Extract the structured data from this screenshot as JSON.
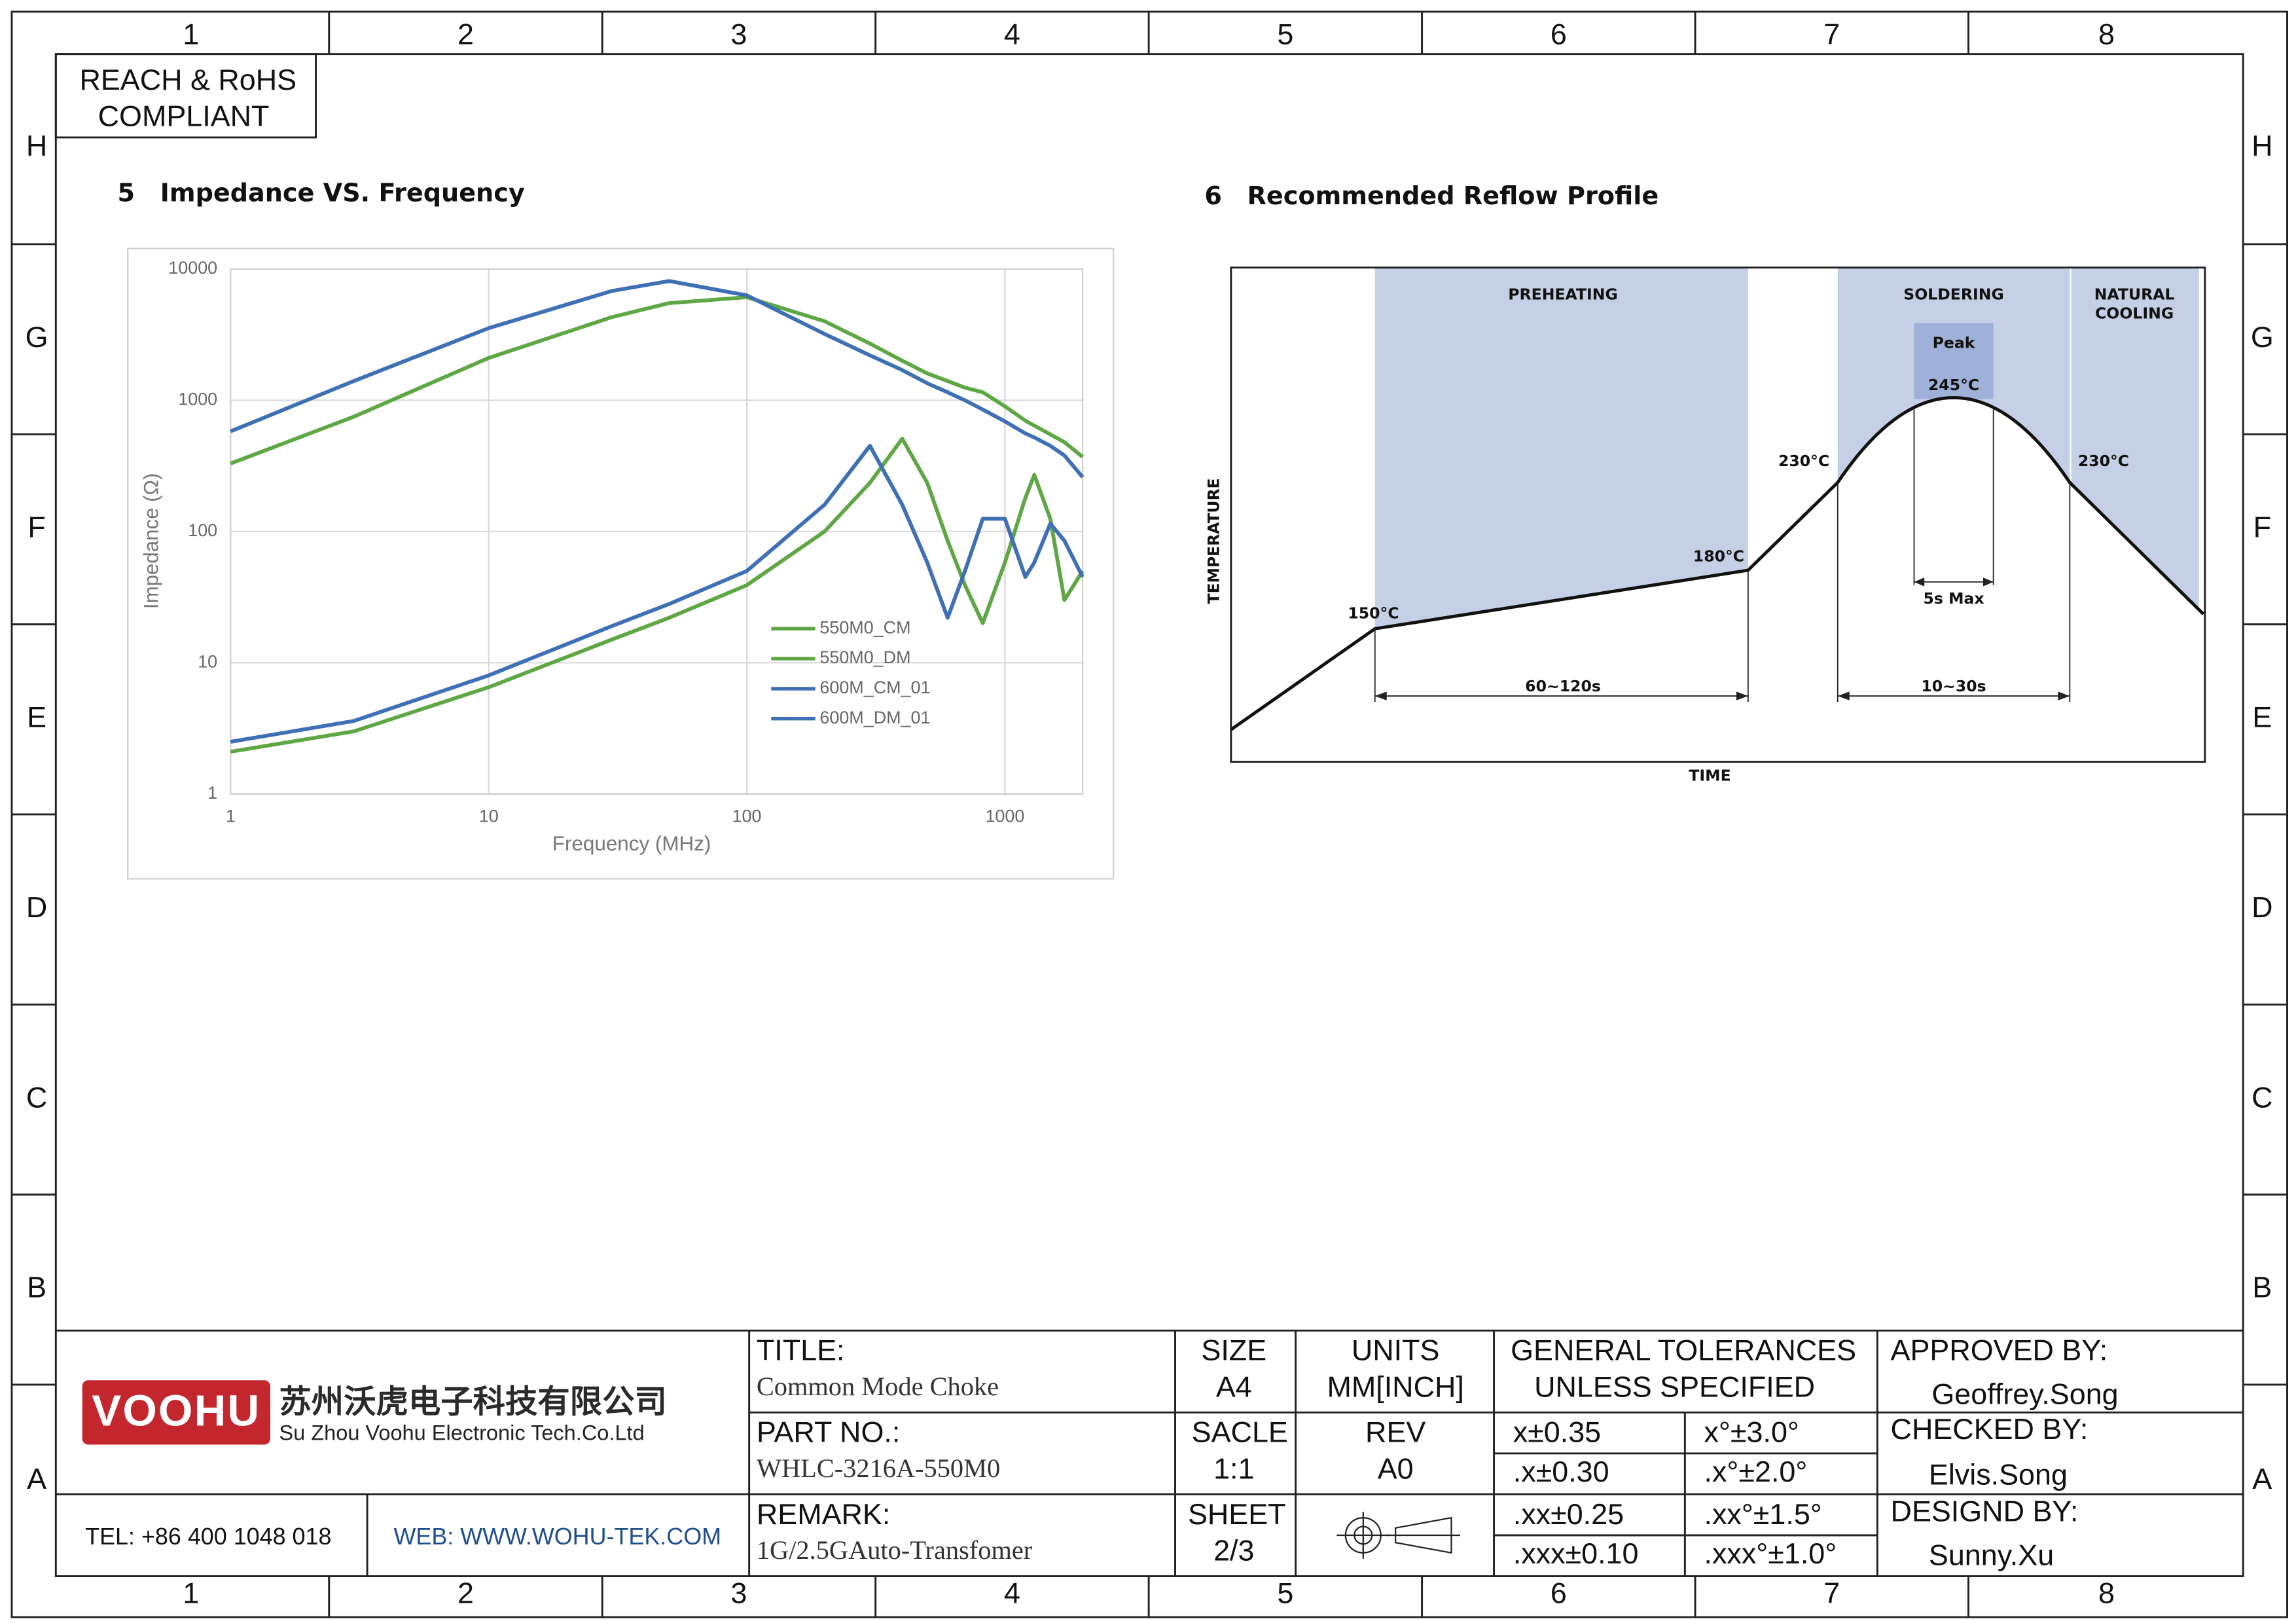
{
  "border": {
    "columns": [
      "1",
      "2",
      "3",
      "4",
      "5",
      "6",
      "7",
      "8"
    ],
    "rows": [
      "H",
      "G",
      "F",
      "E",
      "D",
      "C",
      "B",
      "A"
    ]
  },
  "compliance": [
    "REACH & RoHS",
    "COMPLIANT"
  ],
  "sections": [
    {
      "number": "5",
      "title": "Impedance VS. Frequency"
    },
    {
      "number": "6",
      "title": "Recommended Reflow Profile"
    }
  ],
  "chart_data": {
    "type": "line",
    "xlabel": "Frequency (MHz)",
    "ylabel": "Impedance (Ω)",
    "xscale": "log",
    "yscale": "log",
    "x": [
      1,
      3,
      10,
      30,
      50,
      100,
      200,
      300,
      400,
      500,
      600,
      700,
      820,
      1000,
      1200,
      1300,
      1500,
      1700,
      2000
    ],
    "xlim": [
      1,
      2000
    ],
    "xticks": [
      1,
      10,
      100,
      1000
    ],
    "ylim": [
      1,
      10000
    ],
    "yticks": [
      1,
      10,
      100,
      1000,
      10000
    ],
    "grid": true,
    "legend": "lower center",
    "series": [
      {
        "name": "550M0_CM",
        "color": "#5fa745",
        "values": [
          330,
          750,
          2100,
          4300,
          5500,
          6100,
          4000,
          2700,
          2000,
          1600,
          1400,
          1250,
          1150,
          900,
          700,
          640,
          550,
          480,
          370
        ]
      },
      {
        "name": "550M0_DM",
        "color": "#5fa745",
        "values": [
          2.1,
          3,
          6.5,
          15,
          22,
          39,
          100,
          235,
          510,
          235,
          85,
          39,
          20,
          58,
          180,
          270,
          125,
          30,
          50
        ]
      },
      {
        "name": "600M_CM_01",
        "color": "#3f6fb5",
        "values": [
          580,
          1400,
          3550,
          6800,
          8100,
          6300,
          3200,
          2200,
          1700,
          1350,
          1150,
          1000,
          850,
          690,
          560,
          520,
          450,
          380,
          260
        ]
      },
      {
        "name": "600M_DM_01",
        "color": "#3f6fb5",
        "values": [
          2.5,
          3.6,
          8,
          19,
          28,
          50,
          160,
          450,
          160,
          58,
          22,
          50,
          125,
          125,
          45,
          58,
          115,
          85,
          45
        ]
      }
    ]
  },
  "reflow": {
    "zones": [
      "PREHEATING",
      "SOLDERING",
      "NATURAL",
      "COOLING"
    ],
    "peak": "Peak",
    "peak_temp": "245°C",
    "temps": [
      "150°C",
      "180°C",
      "230°C",
      "230°C"
    ],
    "durations": [
      "60~120s",
      "10~30s",
      "5s Max"
    ],
    "ylabel": "TEMPERATURE",
    "xlabel": "TIME"
  },
  "title_block": {
    "logo": "VOOHU",
    "company_cn": "苏州沃虎电子科技有限公司",
    "company_en": "Su Zhou Voohu Electronic Tech.Co.Ltd",
    "tel": "TEL: +86 400 1048 018",
    "web": "WEB: WWW.WOHU-TEK.COM",
    "title_label": "TITLE:",
    "title": "Common Mode Choke",
    "part_label": "PART NO.:",
    "part": "WHLC-3216A-550M0",
    "remark_label": "REMARK:",
    "remark": "1G/2.5GAuto-Transfomer",
    "size_label": "SIZE",
    "size": "A4",
    "units_label": "UNITS",
    "units": "MM[INCH]",
    "scale_label": "SACLE",
    "scale": "1:1",
    "rev_label": "REV",
    "rev": "A0",
    "sheet_label": "SHEET",
    "sheet": "2/3",
    "tolerances_label": [
      "GENERAL TOLERANCES",
      "UNLESS SPECIFIED"
    ],
    "tolerances": [
      [
        "x±0.35",
        "x°±3.0°"
      ],
      [
        ".x±0.30",
        ".x°±2.0°"
      ],
      [
        ".xx±0.25",
        ".xx°±1.5°"
      ],
      [
        ".xxx±0.10",
        ".xxx°±1.0°"
      ]
    ],
    "approved_label": "APPROVED BY:",
    "approved": "Geoffrey.Song",
    "checked_label": "CHECKED BY:",
    "checked": "Elvis.Song",
    "designed_label": "DESIGND BY:",
    "designed": "Sunny.Xu"
  }
}
